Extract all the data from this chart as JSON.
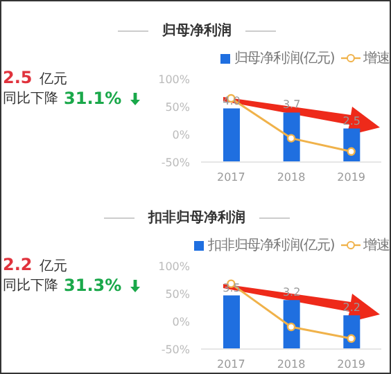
{
  "chart_data": [
    {
      "type": "bar",
      "title": "归母净利润",
      "annotations": [
        "2.5 亿元",
        "同比下降 31.1%"
      ],
      "categories": [
        "2017",
        "2018",
        "2019"
      ],
      "legend": "top right",
      "marker": "circle",
      "ylim": [
        -50,
        100
      ],
      "yticks": [
        {
          "value": -50,
          "label": "-50%"
        },
        {
          "value": 0,
          "label": "0%"
        },
        {
          "value": 50,
          "label": "50%"
        },
        {
          "value": 100,
          "label": "100%"
        }
      ],
      "series": [
        {
          "name": "归母净利润(亿元)",
          "color": "#1f6fe0",
          "axis": "y2",
          "values": [
            4.0,
            3.7,
            2.5
          ],
          "value_labels": [
            "4.0",
            "3.7",
            "2.5"
          ]
        },
        {
          "name": "增速",
          "type": "line",
          "color": "#f0b24a",
          "values": [
            65,
            -7,
            -31
          ]
        }
      ]
    },
    {
      "type": "bar",
      "title": "扣非归母净利润",
      "annotations": [
        "2.2 亿元",
        "同比下降 31.3%"
      ],
      "categories": [
        "2017",
        "2018",
        "2019"
      ],
      "legend": "top right",
      "marker": "circle",
      "ylim": [
        -50,
        100
      ],
      "yticks": [
        {
          "value": -50,
          "label": "-50%"
        },
        {
          "value": 0,
          "label": "0%"
        },
        {
          "value": 50,
          "label": "50%"
        },
        {
          "value": 100,
          "label": "100%"
        }
      ],
      "series": [
        {
          "name": "扣非归母净利润(亿元)",
          "color": "#1f6fe0",
          "axis": "y2",
          "values": [
            3.5,
            3.2,
            2.2
          ],
          "value_labels": [
            "3.5",
            "3.2",
            "2.2"
          ]
        },
        {
          "name": "增速",
          "type": "line",
          "color": "#f0b24a",
          "values": [
            68,
            -10,
            -31
          ]
        }
      ]
    }
  ]
}
